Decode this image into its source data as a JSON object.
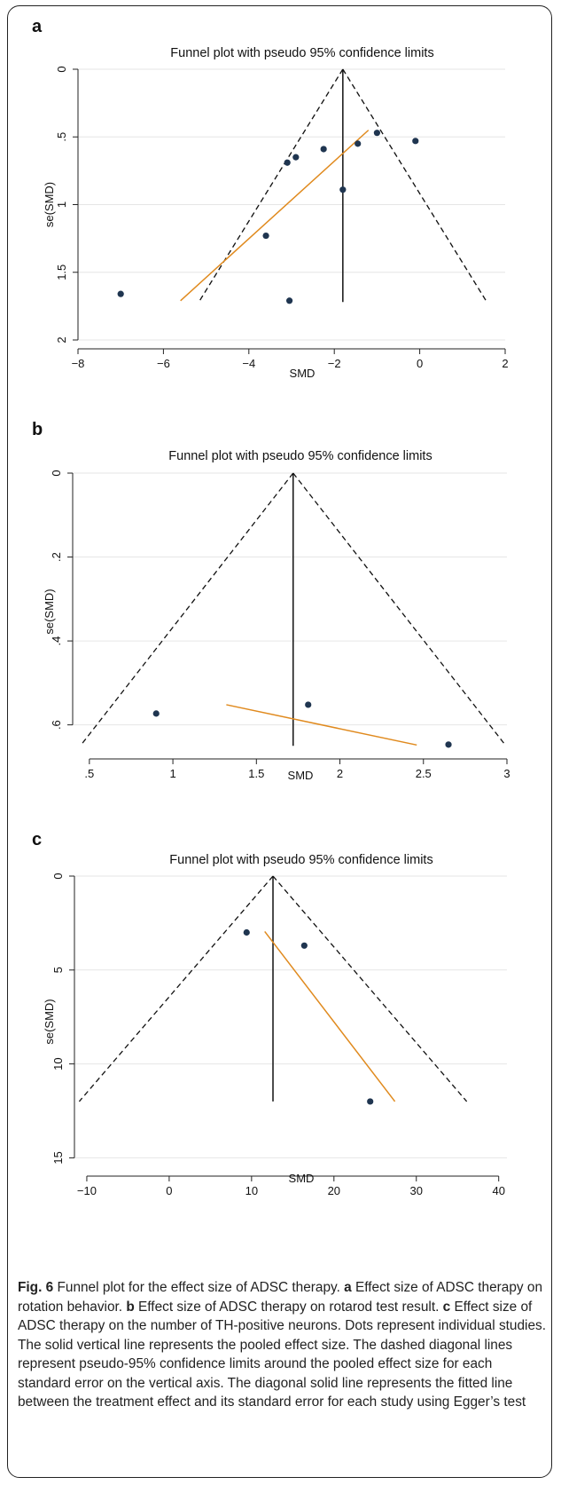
{
  "chart_data": [
    {
      "type": "scatter",
      "panel": "a",
      "title": "Funnel plot with pseudo 95% confidence limits",
      "xlabel": "SMD",
      "ylabel": "se(SMD)",
      "xlim": [
        -8,
        2
      ],
      "ylim": [
        0,
        2
      ],
      "y_inverted": true,
      "grid": "horizontal",
      "xticks": [
        -8,
        -6,
        -4,
        -2,
        0,
        2
      ],
      "xtick_labels": [
        "−8",
        "−6",
        "−4",
        "−2",
        "0",
        "2"
      ],
      "yticks": [
        0,
        0.5,
        1,
        1.5,
        2
      ],
      "ytick_labels": [
        "0",
        ".5",
        "1",
        "1.5",
        "2"
      ],
      "pooled_effect": -1.8,
      "ci_max_se": 1.72,
      "points": [
        {
          "x": -7.0,
          "y": 1.66
        },
        {
          "x": -3.05,
          "y": 1.71
        },
        {
          "x": -3.6,
          "y": 1.23
        },
        {
          "x": -3.1,
          "y": 0.69
        },
        {
          "x": -2.9,
          "y": 0.65
        },
        {
          "x": -2.25,
          "y": 0.59
        },
        {
          "x": -1.8,
          "y": 0.89
        },
        {
          "x": -1.45,
          "y": 0.55
        },
        {
          "x": -1.0,
          "y": 0.47
        },
        {
          "x": -0.1,
          "y": 0.53
        }
      ],
      "egger_line": [
        {
          "x": -5.6,
          "y": 1.71
        },
        {
          "x": -1.2,
          "y": 0.45
        }
      ]
    },
    {
      "type": "scatter",
      "panel": "b",
      "title": "Funnel plot with pseudo 95% confidence limits",
      "xlabel": "SMD",
      "ylabel": "se(SMD)",
      "xlim": [
        0.4,
        3.0
      ],
      "ylim": [
        0,
        0.66
      ],
      "y_inverted": true,
      "grid": "horizontal",
      "xticks": [
        0.5,
        1,
        1.5,
        2,
        2.5,
        3
      ],
      "xtick_labels": [
        ".5",
        "1",
        "1.5",
        "2",
        "2.5",
        "3"
      ],
      "yticks": [
        0,
        0.2,
        0.4,
        0.6
      ],
      "ytick_labels": [
        "0",
        ".2",
        ".4",
        ".6"
      ],
      "pooled_effect": 1.72,
      "ci_max_se": 0.65,
      "points": [
        {
          "x": 0.9,
          "y": 0.573
        },
        {
          "x": 1.81,
          "y": 0.552
        },
        {
          "x": 2.65,
          "y": 0.647
        }
      ],
      "egger_line": [
        {
          "x": 1.32,
          "y": 0.552
        },
        {
          "x": 2.46,
          "y": 0.648
        }
      ]
    },
    {
      "type": "scatter",
      "panel": "c",
      "title": "Funnel plot with pseudo 95% confidence limits",
      "xlabel": "SMD",
      "ylabel": "se(SMD)",
      "xlim": [
        -11.5,
        41
      ],
      "ylim": [
        0,
        15.5
      ],
      "y_inverted": true,
      "grid": "horizontal",
      "xticks": [
        -10,
        0,
        10,
        20,
        30,
        40
      ],
      "xtick_labels": [
        "−10",
        "0",
        "10",
        "20",
        "30",
        "40"
      ],
      "yticks": [
        0,
        5,
        10,
        15
      ],
      "ytick_labels": [
        "0",
        "5",
        "10",
        "15"
      ],
      "pooled_effect": 12.6,
      "ci_max_se": 12.0,
      "points": [
        {
          "x": 9.4,
          "y": 3.0
        },
        {
          "x": 16.4,
          "y": 3.7
        },
        {
          "x": 24.4,
          "y": 12.0
        }
      ],
      "egger_line": [
        {
          "x": 11.6,
          "y": 2.95
        },
        {
          "x": 27.4,
          "y": 12.0
        }
      ]
    }
  ],
  "caption": {
    "fig_label": "Fig. 6",
    "intro": " Funnel plot for the effect size of ADSC therapy. ",
    "a_label": "a",
    "a_text": " Effect size of ADSC therapy on rotation behavior. ",
    "b_label": "b",
    "b_text": " Effect size of ADSC therapy on rotarod test result. ",
    "c_label": "c",
    "c_text": " Effect size of ADSC therapy on the number of TH-positive neurons. Dots represent individual studies. The solid vertical line represents the pooled effect size. The dashed diagonal lines represent pseudo-95% confidence limits around the pooled effect size for each standard error on the vertical axis. The diagonal solid line represents the fitted line between the treatment effect and its standard error for each study using Egger’s test"
  },
  "colors": {
    "point": "#1f3550",
    "egger_line": "#e08a1e",
    "frame": "#222222",
    "grid": "#e6e6e6"
  }
}
